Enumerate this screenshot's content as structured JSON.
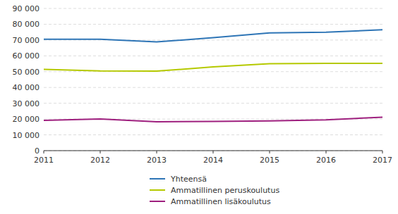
{
  "chart_data": {
    "type": "line",
    "x": [
      2011,
      2012,
      2013,
      2014,
      2015,
      2016,
      2017
    ],
    "series": [
      {
        "name": "Yhteensä",
        "color": "#2e75b6",
        "values": [
          70500,
          70500,
          68800,
          71500,
          74500,
          75000,
          76500
        ]
      },
      {
        "name": "Ammatillinen peruskoulutus",
        "color": "#b5c900",
        "values": [
          51500,
          50500,
          50300,
          53000,
          55000,
          55200,
          55300
        ]
      },
      {
        "name": "Ammatillinen lisäkoulutus",
        "color": "#9e1f7e",
        "values": [
          19200,
          20000,
          18300,
          18500,
          18800,
          19500,
          21200
        ]
      }
    ],
    "xlim": [
      2011,
      2017
    ],
    "xticks": [
      2011,
      2012,
      2013,
      2014,
      2015,
      2016,
      2017
    ],
    "ylim": [
      0,
      90000
    ],
    "yticks": [
      0,
      {
        "value": 10000,
        "label": "10 000"
      },
      {
        "value": 20000,
        "label": "20 000"
      },
      {
        "value": 30000,
        "label": "30 000"
      },
      {
        "value": 40000,
        "label": "40 000"
      },
      {
        "value": 50000,
        "label": "50 000"
      },
      {
        "value": 60000,
        "label": "60 000"
      },
      {
        "value": 70000,
        "label": "70 000"
      },
      {
        "value": 80000,
        "label": "80 000"
      },
      {
        "value": 90000,
        "label": "90 000"
      }
    ],
    "grid": true,
    "legend": "bottom"
  }
}
